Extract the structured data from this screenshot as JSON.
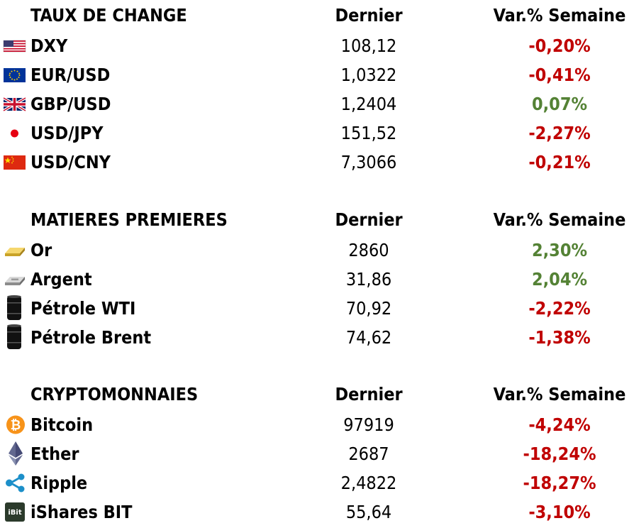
{
  "sections": [
    {
      "header": {
        "name": "TAUX DE CHANGE",
        "last": "Dernier",
        "change": "Var.% Semaine"
      },
      "rows": [
        {
          "icon": "us-flag-icon",
          "name": "DXY",
          "last": "108,12",
          "change": "-0,20%",
          "dir": "neg"
        },
        {
          "icon": "eu-flag-icon",
          "name": "EUR/USD",
          "last": "1,0322",
          "change": "-0,41%",
          "dir": "neg"
        },
        {
          "icon": "uk-flag-icon",
          "name": "GBP/USD",
          "last": "1,2404",
          "change": "0,07%",
          "dir": "pos"
        },
        {
          "icon": "japan-flag-icon",
          "name": "USD/JPY",
          "last": "151,52",
          "change": "-2,27%",
          "dir": "neg"
        },
        {
          "icon": "china-flag-icon",
          "name": "USD/CNY",
          "last": "7,3066",
          "change": "-0,21%",
          "dir": "neg"
        }
      ]
    },
    {
      "header": {
        "name": "MATIERES PREMIERES",
        "last": "Dernier",
        "change": "Var.% Semaine"
      },
      "rows": [
        {
          "icon": "gold-bar-icon",
          "name": "Or",
          "last": "2860",
          "change": "2,30%",
          "dir": "pos"
        },
        {
          "icon": "silver-bar-icon",
          "name": "Argent",
          "last": "31,86",
          "change": "2,04%",
          "dir": "pos"
        },
        {
          "icon": "oil-barrel-icon",
          "name": "Pétrole WTI",
          "last": "70,92",
          "change": "-2,22%",
          "dir": "neg"
        },
        {
          "icon": "oil-barrel-icon",
          "name": "Pétrole Brent",
          "last": "74,62",
          "change": "-1,38%",
          "dir": "neg"
        }
      ]
    },
    {
      "header": {
        "name": "CRYPTOMONNAIES",
        "last": "Dernier",
        "change": "Var.% Semaine"
      },
      "rows": [
        {
          "icon": "bitcoin-icon",
          "name": "Bitcoin",
          "last": "97919",
          "change": "-4,24%",
          "dir": "neg"
        },
        {
          "icon": "ethereum-icon",
          "name": "Ether",
          "last": "2687",
          "change": "-18,24%",
          "dir": "neg"
        },
        {
          "icon": "ripple-icon",
          "name": "Ripple",
          "last": "2,4822",
          "change": "-18,27%",
          "dir": "neg"
        },
        {
          "icon": "ibit-icon",
          "name": "iShares BIT",
          "last": "55,64",
          "change": "-3,10%",
          "dir": "neg"
        }
      ]
    }
  ],
  "colors": {
    "negative": "#c00000",
    "positive": "#548235"
  }
}
